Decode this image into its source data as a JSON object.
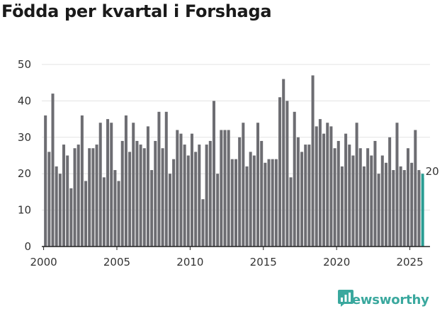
{
  "chart_data": {
    "type": "bar",
    "title": "Födda per kvartal i Forshaga",
    "xlabel": "",
    "ylabel": "",
    "ylim": [
      0,
      50
    ],
    "yticks": [
      0,
      10,
      20,
      30,
      40,
      50
    ],
    "xlim": [
      1999.875,
      2026.375
    ],
    "xticks": [
      2000,
      2005,
      2010,
      2015,
      2020,
      2025
    ],
    "grid": true,
    "x": [
      2000.0,
      2000.25,
      2000.5,
      2000.75,
      2001.0,
      2001.25,
      2001.5,
      2001.75,
      2002.0,
      2002.25,
      2002.5,
      2002.75,
      2003.0,
      2003.25,
      2003.5,
      2003.75,
      2004.0,
      2004.25,
      2004.5,
      2004.75,
      2005.0,
      2005.25,
      2005.5,
      2005.75,
      2006.0,
      2006.25,
      2006.5,
      2006.75,
      2007.0,
      2007.25,
      2007.5,
      2007.75,
      2008.0,
      2008.25,
      2008.5,
      2008.75,
      2009.0,
      2009.25,
      2009.5,
      2009.75,
      2010.0,
      2010.25,
      2010.5,
      2010.75,
      2011.0,
      2011.25,
      2011.5,
      2011.75,
      2012.0,
      2012.25,
      2012.5,
      2012.75,
      2013.0,
      2013.25,
      2013.5,
      2013.75,
      2014.0,
      2014.25,
      2014.5,
      2014.75,
      2015.0,
      2015.25,
      2015.5,
      2015.75,
      2016.0,
      2016.25,
      2016.5,
      2016.75,
      2017.0,
      2017.25,
      2017.5,
      2017.75,
      2018.0,
      2018.25,
      2018.5,
      2018.75,
      2019.0,
      2019.25,
      2019.5,
      2019.75,
      2020.0,
      2020.25,
      2020.5,
      2020.75,
      2021.0,
      2021.25,
      2021.5,
      2021.75,
      2022.0,
      2022.25,
      2022.5,
      2022.75,
      2023.0,
      2023.25,
      2023.5,
      2023.75,
      2024.0,
      2024.25,
      2024.5,
      2024.75,
      2025.0,
      2025.25,
      2025.5,
      2025.75
    ],
    "values": [
      36,
      26,
      42,
      22,
      20,
      28,
      25,
      16,
      27,
      28,
      36,
      18,
      27,
      27,
      28,
      34,
      19,
      35,
      34,
      21,
      18,
      29,
      36,
      26,
      34,
      29,
      28,
      27,
      33,
      21,
      29,
      37,
      27,
      37,
      20,
      24,
      32,
      31,
      28,
      25,
      31,
      26,
      28,
      13,
      28,
      29,
      40,
      20,
      32,
      32,
      32,
      24,
      24,
      30,
      34,
      22,
      26,
      25,
      34,
      29,
      23,
      24,
      24,
      24,
      41,
      46,
      40,
      19,
      37,
      30,
      26,
      28,
      28,
      47,
      33,
      35,
      31,
      34,
      33,
      27,
      29,
      22,
      31,
      28,
      25,
      34,
      27,
      22,
      27,
      25,
      29,
      20,
      25,
      23,
      30,
      21,
      34,
      22,
      21,
      27,
      23,
      32,
      21,
      20
    ],
    "highlight_last": true,
    "last_value_label": "20",
    "bar_color": "#6d6d72",
    "highlight_color": "#2a9d93",
    "grid_color": "#e3e3e3",
    "axis_color": "#222222"
  },
  "brand": {
    "name": "Newsworthy",
    "color": "#3aa89e"
  }
}
